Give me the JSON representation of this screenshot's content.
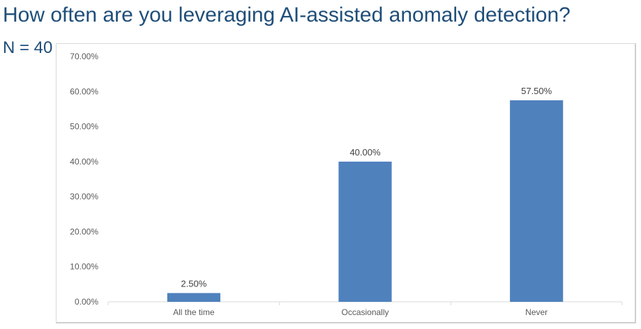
{
  "title": "How often are you leveraging AI-assisted anomaly detection?",
  "sample_size": "N = 40",
  "colors": {
    "title": "#1f4e79",
    "bar": "#4f81bd",
    "axis": "#d9d9d9",
    "tick_text": "#595959"
  },
  "chart_data": {
    "type": "bar",
    "title": "",
    "xlabel": "",
    "ylabel": "",
    "categories": [
      "All the time",
      "Occasionally",
      "Never"
    ],
    "values": [
      2.5,
      40.0,
      57.5
    ],
    "data_labels": [
      "2.50%",
      "40.00%",
      "57.50%"
    ],
    "ylim": [
      0,
      70
    ],
    "y_ticks": [
      0,
      10,
      20,
      30,
      40,
      50,
      60,
      70
    ],
    "y_tick_labels": [
      "0.00%",
      "10.00%",
      "20.00%",
      "30.00%",
      "40.00%",
      "50.00%",
      "60.00%",
      "70.00%"
    ],
    "grid": false,
    "legend": "none"
  }
}
